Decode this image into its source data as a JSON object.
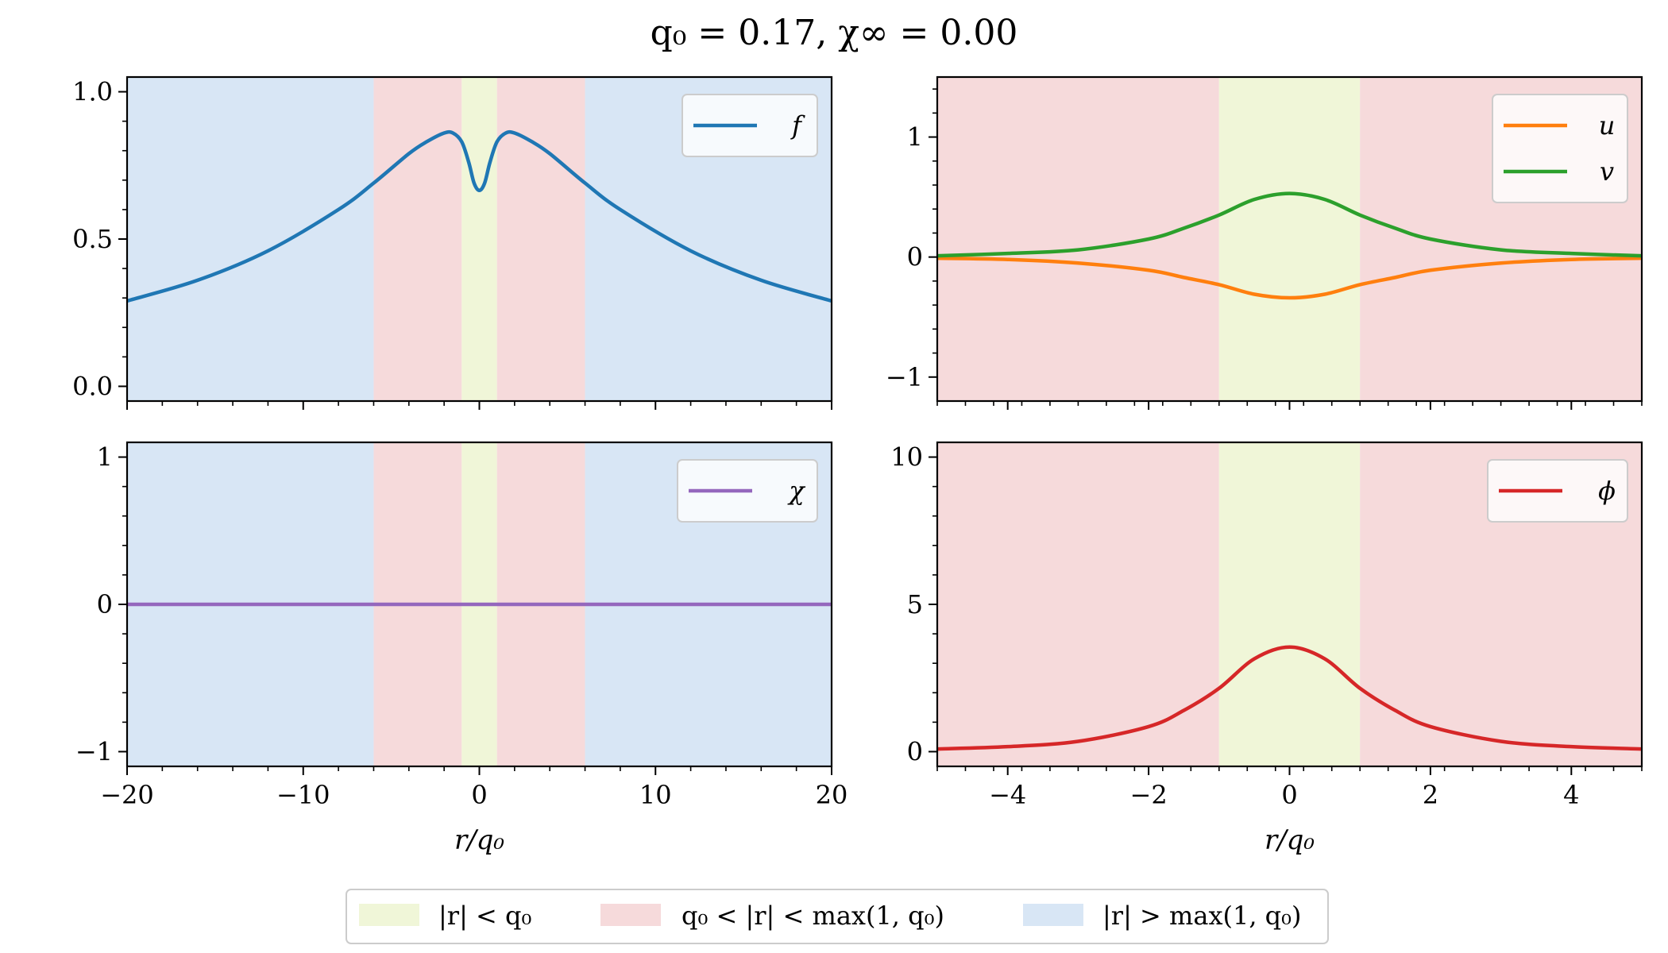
{
  "title": "q₀ =     0.17,    χ∞ = 0.00",
  "colors": {
    "core": "#f0f6d8",
    "mid": "#f6dadb",
    "outer": "#d8e6f5",
    "f": "#1f77b4",
    "u": "#ff7f0e",
    "v": "#2ca02c",
    "chi": "#9467bd",
    "phi": "#d62728"
  },
  "region_legend": {
    "core": "|r| < q₀",
    "mid": "q₀ < |r| < max(1, q₀)",
    "outer": "|r| > max(1, q₀)"
  },
  "chart_data": [
    {
      "id": "f",
      "type": "line",
      "xlabel": "",
      "ylabel": "",
      "xlim": [
        -20,
        20
      ],
      "ylim": [
        -0.05,
        1.05
      ],
      "xticks": [
        -20,
        -10,
        0,
        10,
        20
      ],
      "xticklabels": [
        "",
        "",
        "",
        "",
        ""
      ],
      "yticks": [
        0.0,
        0.5,
        1.0
      ],
      "yticklabels": [
        "0.0",
        "0.5",
        "1.0"
      ],
      "regions": [
        {
          "from": -20,
          "to": -6,
          "kind": "outer"
        },
        {
          "from": -6,
          "to": -1,
          "kind": "mid"
        },
        {
          "from": -1,
          "to": 1,
          "kind": "core"
        },
        {
          "from": 1,
          "to": 6,
          "kind": "mid"
        },
        {
          "from": 6,
          "to": 20,
          "kind": "outer"
        }
      ],
      "series": [
        {
          "name": "f",
          "color_key": "f",
          "x": [
            -20,
            -16,
            -12,
            -8,
            -6,
            -4,
            -3,
            -2,
            -1.5,
            -1,
            -0.6,
            -0.3,
            0,
            0.3,
            0.6,
            1,
            1.5,
            2,
            3,
            4,
            6,
            8,
            12,
            16,
            20
          ],
          "y": [
            0.29,
            0.36,
            0.46,
            0.6,
            0.69,
            0.79,
            0.83,
            0.86,
            0.86,
            0.83,
            0.76,
            0.69,
            0.665,
            0.69,
            0.76,
            0.83,
            0.86,
            0.86,
            0.83,
            0.79,
            0.69,
            0.6,
            0.46,
            0.36,
            0.29
          ]
        }
      ]
    },
    {
      "id": "uv",
      "type": "line",
      "xlabel": "",
      "ylabel": "",
      "xlim": [
        -5,
        5
      ],
      "ylim": [
        -1.2,
        1.5
      ],
      "xticks": [
        -4,
        -2,
        0,
        2,
        4
      ],
      "xticklabels": [
        "",
        "",
        "",
        "",
        ""
      ],
      "yticks": [
        -1,
        0,
        1
      ],
      "yticklabels": [
        "−1",
        "0",
        "1"
      ],
      "regions": [
        {
          "from": -5,
          "to": -1,
          "kind": "mid"
        },
        {
          "from": -1,
          "to": 1,
          "kind": "core"
        },
        {
          "from": 1,
          "to": 5,
          "kind": "mid"
        }
      ],
      "series": [
        {
          "name": "u",
          "color_key": "u",
          "x": [
            -5,
            -4,
            -3,
            -2,
            -1.5,
            -1,
            -0.5,
            0,
            0.5,
            1,
            1.5,
            2,
            3,
            4,
            5
          ],
          "y": [
            -0.01,
            -0.02,
            -0.05,
            -0.11,
            -0.17,
            -0.23,
            -0.31,
            -0.34,
            -0.31,
            -0.23,
            -0.17,
            -0.11,
            -0.05,
            -0.02,
            -0.01
          ]
        },
        {
          "name": "v",
          "color_key": "v",
          "x": [
            -5,
            -4,
            -3,
            -2,
            -1.5,
            -1,
            -0.5,
            0,
            0.5,
            1,
            1.5,
            2,
            3,
            4,
            5
          ],
          "y": [
            0.01,
            0.03,
            0.06,
            0.15,
            0.24,
            0.35,
            0.48,
            0.53,
            0.48,
            0.35,
            0.24,
            0.15,
            0.06,
            0.03,
            0.01
          ]
        }
      ]
    },
    {
      "id": "chi",
      "type": "line",
      "xlabel": "r/q₀",
      "ylabel": "",
      "xlim": [
        -20,
        20
      ],
      "ylim": [
        -1.1,
        1.1
      ],
      "xticks": [
        -20,
        -10,
        0,
        10,
        20
      ],
      "xticklabels": [
        "−20",
        "−10",
        "0",
        "10",
        "20"
      ],
      "yticks": [
        -1,
        0,
        1
      ],
      "yticklabels": [
        "−1",
        "0",
        "1"
      ],
      "regions": [
        {
          "from": -20,
          "to": -6,
          "kind": "outer"
        },
        {
          "from": -6,
          "to": -1,
          "kind": "mid"
        },
        {
          "from": -1,
          "to": 1,
          "kind": "core"
        },
        {
          "from": 1,
          "to": 6,
          "kind": "mid"
        },
        {
          "from": 6,
          "to": 20,
          "kind": "outer"
        }
      ],
      "series": [
        {
          "name": "χ",
          "color_key": "chi",
          "x": [
            -20,
            20
          ],
          "y": [
            0,
            0
          ]
        }
      ]
    },
    {
      "id": "phi",
      "type": "line",
      "xlabel": "r/q₀",
      "ylabel": "",
      "xlim": [
        -5,
        5
      ],
      "ylim": [
        -0.5,
        10.5
      ],
      "xticks": [
        -4,
        -2,
        0,
        2,
        4
      ],
      "xticklabels": [
        "−4",
        "−2",
        "0",
        "2",
        "4"
      ],
      "yticks": [
        0,
        5,
        10
      ],
      "yticklabels": [
        "0",
        "5",
        "10"
      ],
      "regions": [
        {
          "from": -5,
          "to": -1,
          "kind": "mid"
        },
        {
          "from": -1,
          "to": 1,
          "kind": "core"
        },
        {
          "from": 1,
          "to": 5,
          "kind": "mid"
        }
      ],
      "series": [
        {
          "name": "ϕ",
          "color_key": "phi",
          "x": [
            -5,
            -4,
            -3,
            -2,
            -1.5,
            -1,
            -0.5,
            0,
            0.5,
            1,
            1.5,
            2,
            3,
            4,
            5
          ],
          "y": [
            0.09,
            0.17,
            0.35,
            0.85,
            1.4,
            2.15,
            3.15,
            3.55,
            3.15,
            2.15,
            1.4,
            0.85,
            0.35,
            0.17,
            0.09
          ]
        }
      ]
    }
  ]
}
